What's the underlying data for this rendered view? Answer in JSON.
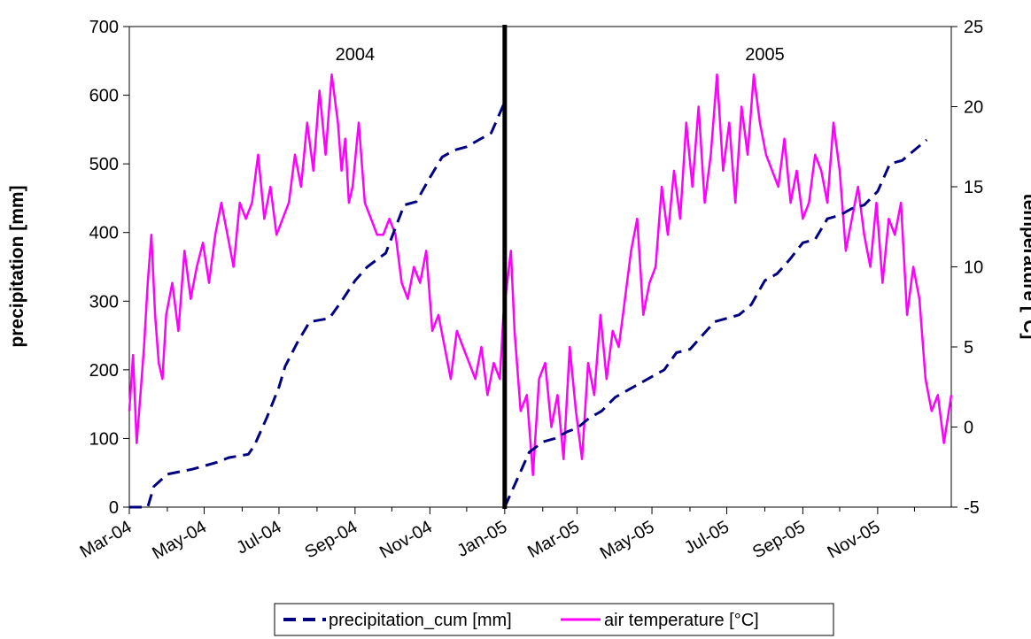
{
  "chart_data": {
    "type": "line",
    "title": "",
    "xlabel": "",
    "ylabel": "precipitation [mm]",
    "y2label": "temperature [°C]",
    "x_range": [
      "2004-03-01",
      "2005-12-31"
    ],
    "x_tick_labels": [
      "Mar-04",
      "May-04",
      "Jul-04",
      "Sep-04",
      "Nov-04",
      "Jan-05",
      "Mar-05",
      "May-05",
      "Jul-05",
      "Sep-05",
      "Nov-05"
    ],
    "x_tick_dates": [
      "2004-03-01",
      "2004-05-01",
      "2004-07-01",
      "2004-09-01",
      "2004-11-01",
      "2005-01-01",
      "2005-03-01",
      "2005-05-01",
      "2005-07-01",
      "2005-09-01",
      "2005-11-01"
    ],
    "ylim": [
      0,
      700
    ],
    "y_ticks": [
      0,
      100,
      200,
      300,
      400,
      500,
      600,
      700
    ],
    "y2lim": [
      -5,
      25
    ],
    "y2_ticks": [
      -5,
      0,
      5,
      10,
      15,
      20,
      25
    ],
    "grid": false,
    "legend": {
      "placement": "bottom-center"
    },
    "annotations": [
      {
        "text": "2004",
        "x": "2004-09-01",
        "y": 660
      },
      {
        "text": "2005",
        "x": "2005-08-01",
        "y": 660
      }
    ],
    "divider": {
      "x": "2005-01-01",
      "style": "thick vertical line"
    },
    "series": [
      {
        "name": "precipitation_cum [mm]",
        "axis": "left",
        "color": "#000080",
        "style": "dashed",
        "segments": [
          {
            "x": [
              "2004-03-01",
              "2004-03-16",
              "2004-03-21",
              "2004-04-01",
              "2004-04-21",
              "2004-05-11",
              "2004-05-21",
              "2004-06-06",
              "2004-06-11",
              "2004-06-21",
              "2004-07-01",
              "2004-07-06",
              "2004-07-16",
              "2004-07-26",
              "2004-08-11",
              "2004-08-21",
              "2004-09-01",
              "2004-09-11",
              "2004-09-26",
              "2004-10-11",
              "2004-10-21",
              "2004-11-01",
              "2004-11-11",
              "2004-11-21",
              "2004-12-01",
              "2004-12-11",
              "2004-12-21",
              "2005-01-01"
            ],
            "values": [
              0,
              0,
              30,
              48,
              55,
              65,
              72,
              77,
              90,
              130,
              175,
              205,
              240,
              270,
              275,
              300,
              330,
              350,
              370,
              440,
              445,
              480,
              510,
              520,
              525,
              535,
              545,
              590
            ]
          },
          {
            "x": [
              "2005-01-01",
              "2005-01-11",
              "2005-01-21",
              "2005-02-01",
              "2005-02-11",
              "2005-02-21",
              "2005-03-01",
              "2005-03-11",
              "2005-03-21",
              "2005-04-01",
              "2005-04-11",
              "2005-05-01",
              "2005-05-11",
              "2005-05-21",
              "2005-06-01",
              "2005-06-11",
              "2005-06-21",
              "2005-07-01",
              "2005-07-11",
              "2005-07-21",
              "2005-08-01",
              "2005-08-11",
              "2005-08-21",
              "2005-09-01",
              "2005-09-11",
              "2005-09-21",
              "2005-10-01",
              "2005-10-11",
              "2005-10-21",
              "2005-11-01",
              "2005-11-11",
              "2005-11-21",
              "2005-12-01",
              "2005-12-11"
            ],
            "values": [
              0,
              40,
              80,
              95,
              100,
              110,
              115,
              130,
              140,
              160,
              170,
              190,
              200,
              225,
              230,
              250,
              270,
              275,
              280,
              295,
              330,
              340,
              360,
              385,
              390,
              420,
              425,
              435,
              440,
              460,
              500,
              505,
              520,
              535
            ]
          }
        ]
      },
      {
        "name": "air temperature [°C]",
        "axis": "right",
        "color": "#ff00ff",
        "style": "solid",
        "x": [
          "2004-03-01",
          "2004-03-04",
          "2004-03-07",
          "2004-03-10",
          "2004-03-13",
          "2004-03-16",
          "2004-03-19",
          "2004-03-22",
          "2004-03-25",
          "2004-03-28",
          "2004-03-31",
          "2004-04-05",
          "2004-04-10",
          "2004-04-15",
          "2004-04-20",
          "2004-04-25",
          "2004-04-30",
          "2004-05-05",
          "2004-05-10",
          "2004-05-15",
          "2004-05-20",
          "2004-05-25",
          "2004-05-30",
          "2004-06-04",
          "2004-06-09",
          "2004-06-14",
          "2004-06-19",
          "2004-06-24",
          "2004-06-29",
          "2004-07-04",
          "2004-07-09",
          "2004-07-14",
          "2004-07-19",
          "2004-07-24",
          "2004-07-29",
          "2004-08-03",
          "2004-08-08",
          "2004-08-13",
          "2004-08-18",
          "2004-08-21",
          "2004-08-24",
          "2004-08-27",
          "2004-08-30",
          "2004-09-04",
          "2004-09-09",
          "2004-09-14",
          "2004-09-19",
          "2004-09-24",
          "2004-09-29",
          "2004-10-04",
          "2004-10-09",
          "2004-10-14",
          "2004-10-19",
          "2004-10-24",
          "2004-10-29",
          "2004-11-03",
          "2004-11-08",
          "2004-11-13",
          "2004-11-18",
          "2004-11-23",
          "2004-11-28",
          "2004-12-03",
          "2004-12-08",
          "2004-12-13",
          "2004-12-18",
          "2004-12-23",
          "2004-12-28",
          "2004-12-31",
          "2005-01-03",
          "2005-01-06",
          "2005-01-09",
          "2005-01-14",
          "2005-01-19",
          "2005-01-24",
          "2005-01-29",
          "2005-02-03",
          "2005-02-08",
          "2005-02-13",
          "2005-02-18",
          "2005-02-23",
          "2005-02-28",
          "2005-03-05",
          "2005-03-10",
          "2005-03-15",
          "2005-03-20",
          "2005-03-25",
          "2005-03-30",
          "2005-04-04",
          "2005-04-09",
          "2005-04-14",
          "2005-04-19",
          "2005-04-24",
          "2005-04-29",
          "2005-05-04",
          "2005-05-09",
          "2005-05-14",
          "2005-05-19",
          "2005-05-24",
          "2005-05-29",
          "2005-06-03",
          "2005-06-08",
          "2005-06-13",
          "2005-06-18",
          "2005-06-23",
          "2005-06-28",
          "2005-07-03",
          "2005-07-08",
          "2005-07-13",
          "2005-07-18",
          "2005-07-23",
          "2005-07-28",
          "2005-08-02",
          "2005-08-07",
          "2005-08-12",
          "2005-08-17",
          "2005-08-22",
          "2005-08-27",
          "2005-09-01",
          "2005-09-06",
          "2005-09-11",
          "2005-09-16",
          "2005-09-21",
          "2005-09-26",
          "2005-10-01",
          "2005-10-06",
          "2005-10-11",
          "2005-10-16",
          "2005-10-21",
          "2005-10-26",
          "2005-10-31",
          "2005-11-05",
          "2005-11-10",
          "2005-11-15",
          "2005-11-20",
          "2005-11-25",
          "2005-11-30",
          "2005-12-05",
          "2005-12-10",
          "2005-12-15",
          "2005-12-20",
          "2005-12-25",
          "2005-12-31"
        ],
        "values": [
          1,
          4.5,
          -1,
          2,
          5,
          9,
          12,
          7,
          4,
          3,
          7,
          9,
          6,
          11,
          8,
          10,
          11.5,
          9,
          12,
          14,
          12,
          10,
          14,
          13,
          14,
          17,
          13,
          15,
          12,
          13,
          14,
          17,
          15,
          19,
          16,
          21,
          17,
          22,
          19,
          16,
          18,
          14,
          15,
          19,
          14,
          13,
          12,
          12,
          13,
          12,
          9,
          8,
          10,
          9,
          11,
          6,
          7,
          5,
          3,
          6,
          5,
          4,
          3,
          5,
          2,
          4,
          3,
          7,
          9,
          11,
          6,
          1,
          2,
          -3,
          3,
          4,
          0,
          2,
          -2,
          5,
          1,
          -2,
          4,
          2,
          7,
          3,
          6,
          5,
          8,
          11,
          13,
          7,
          9,
          10,
          15,
          12,
          16,
          13,
          19,
          15,
          20,
          14,
          17,
          22,
          16,
          19,
          14,
          20,
          17,
          22,
          19,
          17,
          16,
          15,
          18,
          14,
          16,
          13,
          14,
          17,
          16,
          14,
          19,
          16,
          11,
          13,
          15,
          12,
          10,
          14,
          9,
          13,
          12,
          14,
          7,
          10,
          8,
          3,
          1,
          2,
          -1,
          2
        ]
      }
    ]
  }
}
